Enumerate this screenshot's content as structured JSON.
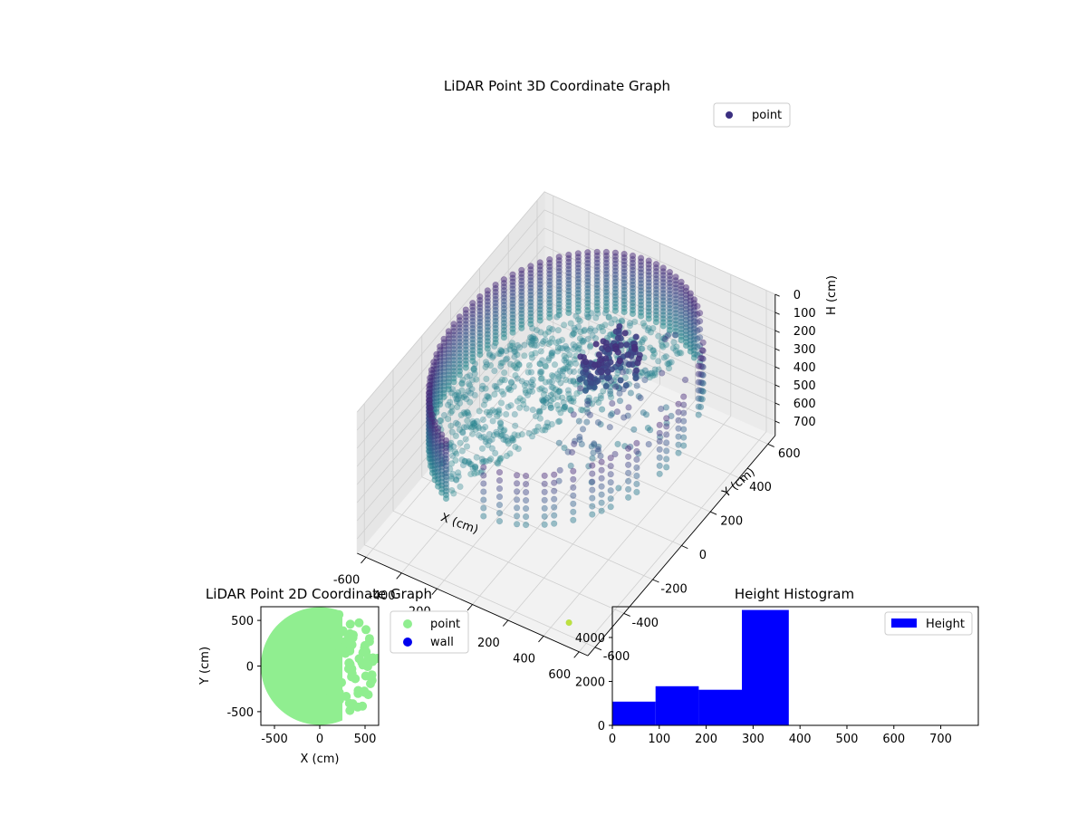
{
  "chart_data": [
    {
      "type": "scatter",
      "projection": "3d",
      "title": "LiDAR Point 3D Coordinate Graph",
      "xlabel": "X (cm)",
      "ylabel": "Y (cm)",
      "zlabel": "H (cm)",
      "xlim": [
        -650,
        650
      ],
      "ylim": [
        -650,
        650
      ],
      "zlim": [
        780,
        0
      ],
      "zaxis_inverted": true,
      "xticks": [
        -600,
        -400,
        -200,
        0,
        200,
        400,
        600
      ],
      "yticks": [
        -600,
        -400,
        -200,
        0,
        200,
        400,
        600
      ],
      "zticks": [
        0,
        100,
        200,
        300,
        400,
        500,
        600,
        700
      ],
      "grid": true,
      "legend": {
        "placement": "top-right",
        "entries": [
          {
            "label": "point",
            "color": "#3b2f80"
          }
        ]
      },
      "colormap": "viridis",
      "structure": {
        "description_of_point_cloud": "ring-shaped wall of points",
        "outer_wall": {
          "radius": 600,
          "height_top": 60,
          "height_bottom": 380
        },
        "dense_floor_sector": {
          "angle_from_deg": 60,
          "angle_to_deg": 250
        },
        "sparse_sector_heights": [
          100,
          350
        ],
        "outlier": {
          "x": 470,
          "y": -560,
          "h": 760
        }
      }
    },
    {
      "type": "scatter",
      "title": "LiDAR Point 2D Coordinate Graph",
      "xlabel": "X (cm)",
      "ylabel": "Y (cm)",
      "xlim": [
        -650,
        650
      ],
      "ylim": [
        -650,
        650
      ],
      "xticks": [
        -500,
        0,
        500
      ],
      "yticks": [
        -500,
        0,
        500
      ],
      "legend": {
        "placement": "outside-right",
        "entries": [
          {
            "label": "point",
            "color": "#90ee90"
          },
          {
            "label": "wall",
            "color": "#0000ee"
          }
        ]
      },
      "series": [
        {
          "name": "point",
          "color": "#90ee90",
          "shape": "disc",
          "center": [
            0,
            0
          ],
          "radius": 650,
          "clip_x_max": 250
        }
      ]
    },
    {
      "type": "bar",
      "subtype": "histogram",
      "title": "Height Histogram",
      "xlim": [
        0,
        780
      ],
      "ylim": [
        0,
        5400
      ],
      "xticks": [
        0,
        100,
        200,
        300,
        400,
        500,
        600,
        700
      ],
      "yticks": [
        0,
        2000,
        4000
      ],
      "legend": {
        "placement": "top-right",
        "entries": [
          {
            "label": "Height",
            "color": "#0000ff"
          }
        ]
      },
      "bins": [
        {
          "from": 0,
          "to": 92,
          "count": 1080
        },
        {
          "from": 92,
          "to": 184,
          "count": 1780
        },
        {
          "from": 184,
          "to": 276,
          "count": 1620
        },
        {
          "from": 276,
          "to": 376,
          "count": 5250
        }
      ],
      "color": "#0000ff"
    }
  ]
}
